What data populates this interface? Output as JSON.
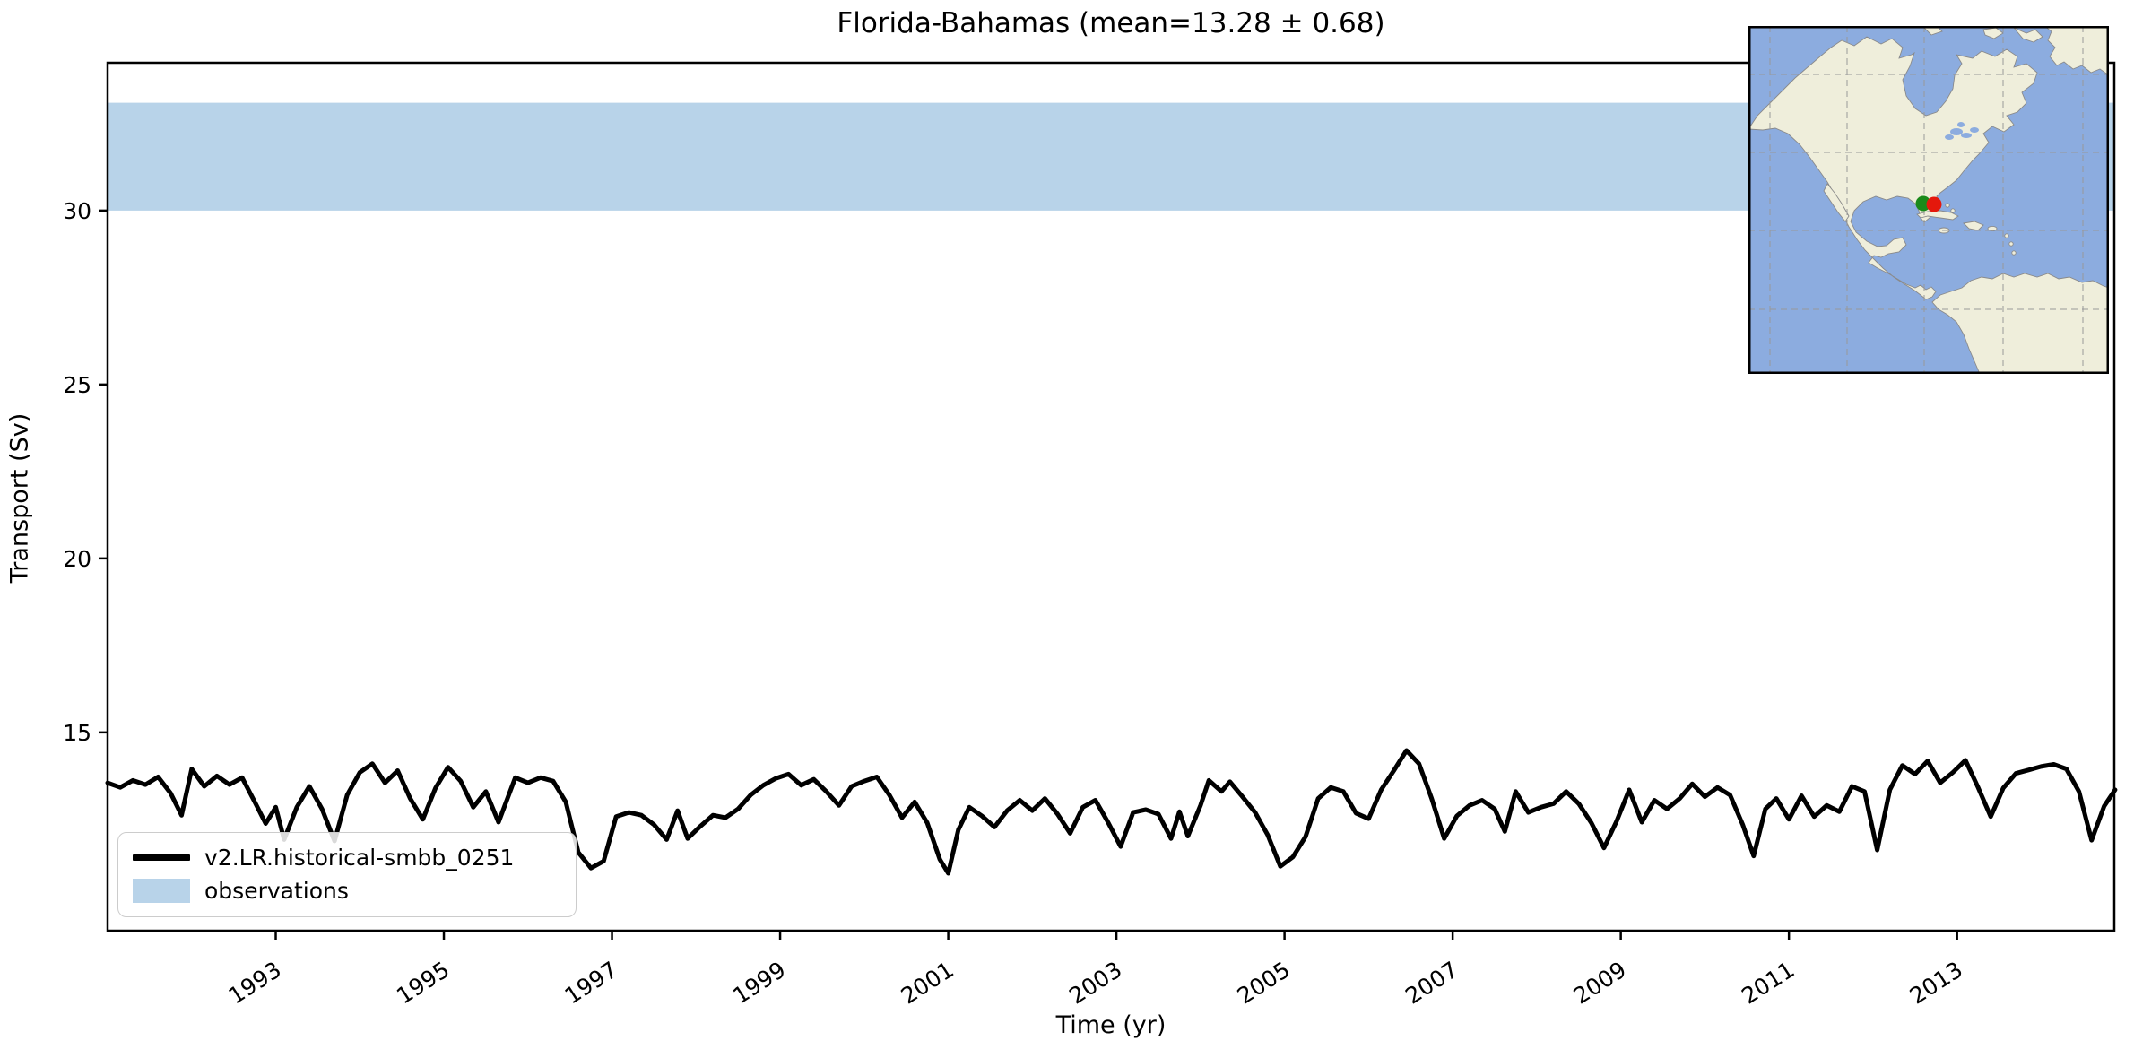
{
  "chart": {
    "title": "Florida-Bahamas (mean=13.28 ± 0.68)",
    "xlabel": "Time (yr)",
    "ylabel": "Transport (Sv)"
  },
  "legend": {
    "items": [
      {
        "swatch": "line",
        "label": "v2.LR.historical-smbb_0251"
      },
      {
        "swatch": "patch",
        "label": "observations"
      }
    ]
  },
  "colors": {
    "series_line": "#000000",
    "observations_band": "#b8d3e9",
    "frame": "#000000",
    "tick_text": "#000000",
    "legend_border": "#cccccc",
    "map_ocean": "#8cacdf",
    "map_land": "#efeedb",
    "map_coast": "#8a8a8a",
    "map_grid": "#999999",
    "map_border": "#000000",
    "marker_green": "#1a8a1a",
    "marker_red": "#e4180c"
  },
  "chart_data": {
    "type": "line",
    "title": "Florida-Bahamas (mean=13.28 ± 0.68)",
    "xlabel": "Time (yr)",
    "ylabel": "Transport (Sv)",
    "xlim": [
      1991.0,
      2014.87
    ],
    "ylim": [
      9.3,
      34.25
    ],
    "xticks": [
      1993,
      1995,
      1997,
      1999,
      2001,
      2003,
      2005,
      2007,
      2009,
      2011,
      2013
    ],
    "yticks": [
      15,
      20,
      25,
      30
    ],
    "grid": false,
    "legend_position": "lower left",
    "mean": 13.28,
    "std": 0.68,
    "observations_band": {
      "label": "observations",
      "from": 30.0,
      "to": 33.1
    },
    "series": [
      {
        "name": "v2.LR.historical-smbb_0251",
        "linewidth": 5,
        "points": [
          [
            1991.0,
            13.55
          ],
          [
            1991.15,
            13.42
          ],
          [
            1991.3,
            13.62
          ],
          [
            1991.45,
            13.5
          ],
          [
            1991.6,
            13.72
          ],
          [
            1991.75,
            13.25
          ],
          [
            1991.88,
            12.62
          ],
          [
            1992.0,
            13.95
          ],
          [
            1992.15,
            13.45
          ],
          [
            1992.3,
            13.75
          ],
          [
            1992.45,
            13.5
          ],
          [
            1992.6,
            13.7
          ],
          [
            1992.75,
            13.0
          ],
          [
            1992.88,
            12.38
          ],
          [
            1993.0,
            12.85
          ],
          [
            1993.1,
            11.92
          ],
          [
            1993.25,
            12.85
          ],
          [
            1993.4,
            13.45
          ],
          [
            1993.55,
            12.8
          ],
          [
            1993.7,
            11.88
          ],
          [
            1993.85,
            13.2
          ],
          [
            1994.0,
            13.85
          ],
          [
            1994.15,
            14.1
          ],
          [
            1994.3,
            13.55
          ],
          [
            1994.45,
            13.9
          ],
          [
            1994.6,
            13.1
          ],
          [
            1994.75,
            12.5
          ],
          [
            1994.9,
            13.4
          ],
          [
            1995.05,
            14.0
          ],
          [
            1995.2,
            13.6
          ],
          [
            1995.35,
            12.85
          ],
          [
            1995.5,
            13.3
          ],
          [
            1995.65,
            12.42
          ],
          [
            1995.85,
            13.7
          ],
          [
            1996.0,
            13.55
          ],
          [
            1996.15,
            13.7
          ],
          [
            1996.3,
            13.6
          ],
          [
            1996.45,
            13.0
          ],
          [
            1996.6,
            11.55
          ],
          [
            1996.75,
            11.1
          ],
          [
            1996.9,
            11.3
          ],
          [
            1997.05,
            12.58
          ],
          [
            1997.2,
            12.7
          ],
          [
            1997.35,
            12.62
          ],
          [
            1997.5,
            12.35
          ],
          [
            1997.65,
            11.92
          ],
          [
            1997.78,
            12.75
          ],
          [
            1997.9,
            11.95
          ],
          [
            1998.05,
            12.3
          ],
          [
            1998.2,
            12.62
          ],
          [
            1998.35,
            12.55
          ],
          [
            1998.5,
            12.8
          ],
          [
            1998.65,
            13.2
          ],
          [
            1998.8,
            13.48
          ],
          [
            1998.95,
            13.68
          ],
          [
            1999.1,
            13.8
          ],
          [
            1999.25,
            13.48
          ],
          [
            1999.4,
            13.65
          ],
          [
            1999.55,
            13.3
          ],
          [
            1999.7,
            12.9
          ],
          [
            1999.85,
            13.45
          ],
          [
            2000.0,
            13.6
          ],
          [
            2000.15,
            13.72
          ],
          [
            2000.3,
            13.2
          ],
          [
            2000.45,
            12.55
          ],
          [
            2000.6,
            13.0
          ],
          [
            2000.75,
            12.4
          ],
          [
            2000.9,
            11.35
          ],
          [
            2001.0,
            10.95
          ],
          [
            2001.12,
            12.2
          ],
          [
            2001.25,
            12.85
          ],
          [
            2001.4,
            12.6
          ],
          [
            2001.55,
            12.28
          ],
          [
            2001.7,
            12.75
          ],
          [
            2001.85,
            13.05
          ],
          [
            2002.0,
            12.75
          ],
          [
            2002.15,
            13.1
          ],
          [
            2002.3,
            12.65
          ],
          [
            2002.45,
            12.1
          ],
          [
            2002.6,
            12.85
          ],
          [
            2002.75,
            13.05
          ],
          [
            2002.9,
            12.42
          ],
          [
            2003.05,
            11.72
          ],
          [
            2003.2,
            12.7
          ],
          [
            2003.35,
            12.78
          ],
          [
            2003.5,
            12.65
          ],
          [
            2003.65,
            11.95
          ],
          [
            2003.75,
            12.72
          ],
          [
            2003.85,
            12.02
          ],
          [
            2004.0,
            12.9
          ],
          [
            2004.1,
            13.62
          ],
          [
            2004.25,
            13.3
          ],
          [
            2004.35,
            13.58
          ],
          [
            2004.5,
            13.15
          ],
          [
            2004.65,
            12.7
          ],
          [
            2004.8,
            12.05
          ],
          [
            2004.95,
            11.15
          ],
          [
            2005.1,
            11.42
          ],
          [
            2005.25,
            12.0
          ],
          [
            2005.4,
            13.1
          ],
          [
            2005.55,
            13.42
          ],
          [
            2005.7,
            13.3
          ],
          [
            2005.85,
            12.68
          ],
          [
            2006.0,
            12.52
          ],
          [
            2006.15,
            13.35
          ],
          [
            2006.3,
            13.9
          ],
          [
            2006.45,
            14.48
          ],
          [
            2006.6,
            14.1
          ],
          [
            2006.75,
            13.1
          ],
          [
            2006.9,
            11.95
          ],
          [
            2007.05,
            12.6
          ],
          [
            2007.2,
            12.9
          ],
          [
            2007.35,
            13.05
          ],
          [
            2007.5,
            12.8
          ],
          [
            2007.62,
            12.15
          ],
          [
            2007.75,
            13.3
          ],
          [
            2007.9,
            12.7
          ],
          [
            2008.05,
            12.85
          ],
          [
            2008.2,
            12.95
          ],
          [
            2008.35,
            13.3
          ],
          [
            2008.5,
            12.95
          ],
          [
            2008.65,
            12.4
          ],
          [
            2008.8,
            11.68
          ],
          [
            2008.95,
            12.45
          ],
          [
            2009.1,
            13.35
          ],
          [
            2009.25,
            12.42
          ],
          [
            2009.4,
            13.05
          ],
          [
            2009.55,
            12.8
          ],
          [
            2009.7,
            13.1
          ],
          [
            2009.85,
            13.52
          ],
          [
            2010.0,
            13.15
          ],
          [
            2010.15,
            13.42
          ],
          [
            2010.3,
            13.2
          ],
          [
            2010.45,
            12.35
          ],
          [
            2010.58,
            11.45
          ],
          [
            2010.72,
            12.8
          ],
          [
            2010.85,
            13.1
          ],
          [
            2011.0,
            12.5
          ],
          [
            2011.15,
            13.18
          ],
          [
            2011.3,
            12.58
          ],
          [
            2011.45,
            12.9
          ],
          [
            2011.6,
            12.72
          ],
          [
            2011.75,
            13.45
          ],
          [
            2011.9,
            13.3
          ],
          [
            2012.05,
            11.62
          ],
          [
            2012.2,
            13.35
          ],
          [
            2012.35,
            14.05
          ],
          [
            2012.5,
            13.8
          ],
          [
            2012.65,
            14.18
          ],
          [
            2012.8,
            13.55
          ],
          [
            2012.95,
            13.85
          ],
          [
            2013.1,
            14.2
          ],
          [
            2013.25,
            13.42
          ],
          [
            2013.4,
            12.58
          ],
          [
            2013.55,
            13.4
          ],
          [
            2013.7,
            13.82
          ],
          [
            2013.85,
            13.92
          ],
          [
            2014.0,
            14.02
          ],
          [
            2014.15,
            14.08
          ],
          [
            2014.3,
            13.95
          ],
          [
            2014.45,
            13.3
          ],
          [
            2014.6,
            11.9
          ],
          [
            2014.75,
            12.88
          ],
          [
            2014.88,
            13.35
          ]
        ]
      }
    ]
  },
  "inset_map": {
    "description": "North and Central America with Florida-Bahamas transect markers",
    "markers": [
      {
        "name": "model-location-marker",
        "color": "#1a8a1a",
        "x": 195,
        "y": 198,
        "r": 8.5
      },
      {
        "name": "obs-location-marker",
        "color": "#e4180c",
        "x": 207,
        "y": 199,
        "r": 8.5
      }
    ]
  }
}
